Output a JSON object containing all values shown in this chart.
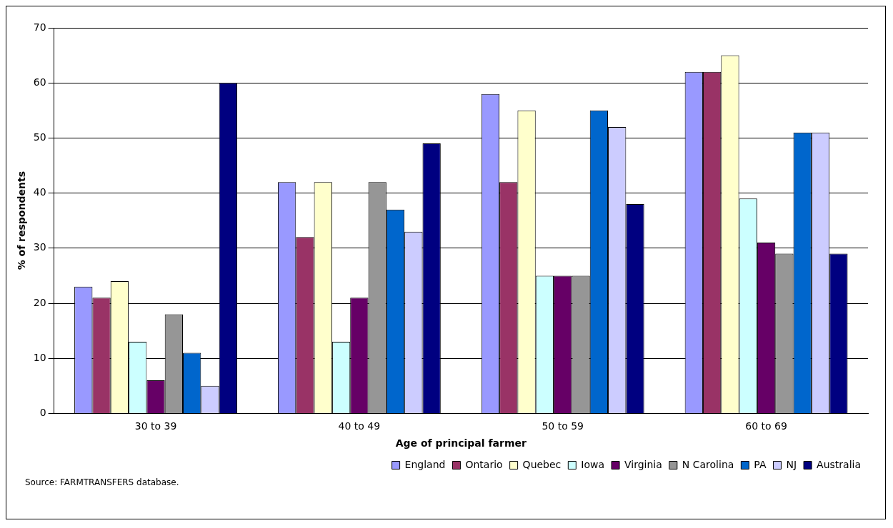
{
  "chart_data": {
    "type": "bar",
    "xlabel": "Age of principal farmer",
    "ylabel": "% of respondents",
    "categories": [
      "30 to 39",
      "40 to 49",
      "50 to 59",
      "60 to 69"
    ],
    "series": [
      {
        "name": "England",
        "color": "#9999ff",
        "values": [
          23,
          42,
          58,
          62
        ]
      },
      {
        "name": "Ontario",
        "color": "#993366",
        "values": [
          21,
          32,
          42,
          62
        ]
      },
      {
        "name": "Quebec",
        "color": "#ffffcc",
        "values": [
          24,
          42,
          55,
          65
        ]
      },
      {
        "name": "Iowa",
        "color": "#ccffff",
        "values": [
          13,
          13,
          25,
          39
        ]
      },
      {
        "name": "Virginia",
        "color": "#660066",
        "values": [
          6,
          21,
          25,
          31
        ]
      },
      {
        "name": "N Carolina",
        "color": "#969696",
        "values": [
          18,
          42,
          25,
          29
        ]
      },
      {
        "name": "PA",
        "color": "#0066cc",
        "values": [
          11,
          37,
          55,
          51
        ]
      },
      {
        "name": "NJ",
        "color": "#ccccff",
        "values": [
          5,
          33,
          52,
          51
        ]
      },
      {
        "name": "Australia",
        "color": "#000080",
        "values": [
          60,
          49,
          38,
          29
        ]
      }
    ],
    "ylim": [
      0,
      70
    ],
    "yticks": [
      0,
      10,
      20,
      30,
      40,
      50,
      60,
      70
    ],
    "grid": "y",
    "legend": "bottom right",
    "annotations": [
      "Source: FARMTRANSFERS database."
    ]
  }
}
